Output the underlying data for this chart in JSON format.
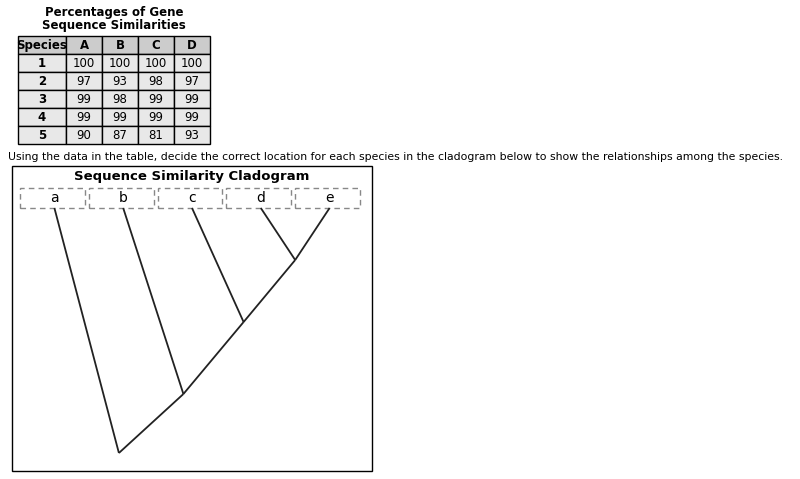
{
  "table_title_line1": "Percentages of Gene",
  "table_title_line2": "Sequence Similarities",
  "table_headers": [
    "Species",
    "A",
    "B",
    "C",
    "D"
  ],
  "table_data": [
    [
      "1",
      "100",
      "100",
      "100",
      "100"
    ],
    [
      "2",
      "97",
      "93",
      "98",
      "97"
    ],
    [
      "3",
      "99",
      "98",
      "99",
      "99"
    ],
    [
      "4",
      "99",
      "99",
      "99",
      "99"
    ],
    [
      "5",
      "90",
      "87",
      "81",
      "93"
    ]
  ],
  "instruction_text": "Using the data in the table, decide the correct location for each species in the cladogram below to show the relationships among the species.",
  "cladogram_title": "Sequence Similarity Cladogram",
  "cladogram_labels": [
    "a",
    "b",
    "c",
    "d",
    "e"
  ],
  "background_color": "#ffffff",
  "table_header_bg": "#cccccc",
  "table_row_bg": "#e8e8e8",
  "line_color": "#222222",
  "dashed_box_color": "#888888"
}
